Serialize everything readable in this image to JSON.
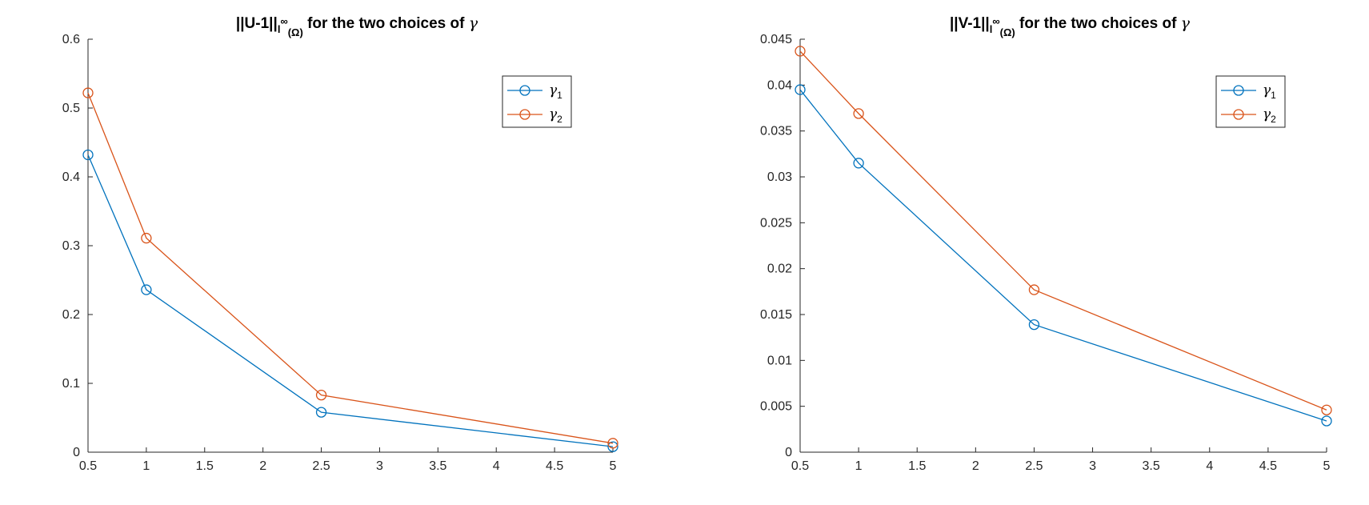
{
  "chart_data": [
    {
      "type": "line",
      "title": {
        "main": "||U-1||",
        "sub": "l",
        "sup": "∞",
        "sub2": "(Ω)",
        "rest": " for the two choices of ",
        "symbol": "γ"
      },
      "xlabel": "",
      "ylabel": "",
      "x": [
        0.5,
        1,
        2.5,
        5
      ],
      "xlim": [
        0.5,
        5
      ],
      "ylim": [
        0,
        0.6
      ],
      "xticks": [
        0.5,
        1,
        1.5,
        2,
        2.5,
        3,
        3.5,
        4,
        4.5,
        5
      ],
      "xtick_labels": [
        "0.5",
        "1",
        "1.5",
        "2",
        "2.5",
        "3",
        "3.5",
        "4",
        "4.5",
        "5"
      ],
      "yticks": [
        0,
        0.1,
        0.2,
        0.3,
        0.4,
        0.5,
        0.6
      ],
      "ytick_labels": [
        "0",
        "0.1",
        "0.2",
        "0.3",
        "0.4",
        "0.5",
        "0.6"
      ],
      "grid": false,
      "legend_position": "top-right",
      "series": [
        {
          "name": "γ1",
          "label": "γ",
          "sub": "1",
          "color": "#0072BD",
          "values": [
            0.432,
            0.236,
            0.058,
            0.008
          ]
        },
        {
          "name": "γ2",
          "label": "γ",
          "sub": "2",
          "color": "#D95319",
          "values": [
            0.522,
            0.311,
            0.083,
            0.013
          ]
        }
      ]
    },
    {
      "type": "line",
      "title": {
        "main": "||V-1||",
        "sub": "l",
        "sup": "∞",
        "sub2": "(Ω)",
        "rest": " for the two choices of ",
        "symbol": "γ"
      },
      "xlabel": "",
      "ylabel": "",
      "x": [
        0.5,
        1,
        2.5,
        5
      ],
      "xlim": [
        0.5,
        5
      ],
      "ylim": [
        0,
        0.045
      ],
      "xticks": [
        0.5,
        1,
        1.5,
        2,
        2.5,
        3,
        3.5,
        4,
        4.5,
        5
      ],
      "xtick_labels": [
        "0.5",
        "1",
        "1.5",
        "2",
        "2.5",
        "3",
        "3.5",
        "4",
        "4.5",
        "5"
      ],
      "yticks": [
        0,
        0.005,
        0.01,
        0.015,
        0.02,
        0.025,
        0.03,
        0.035,
        0.04,
        0.045
      ],
      "ytick_labels": [
        "0",
        "0.005",
        "0.01",
        "0.015",
        "0.02",
        "0.025",
        "0.03",
        "0.035",
        "0.04",
        "0.045"
      ],
      "grid": false,
      "legend_position": "top-right",
      "series": [
        {
          "name": "γ1",
          "label": "γ",
          "sub": "1",
          "color": "#0072BD",
          "values": [
            0.0395,
            0.0315,
            0.0139,
            0.0034
          ]
        },
        {
          "name": "γ2",
          "label": "γ",
          "sub": "2",
          "color": "#D95319",
          "values": [
            0.0437,
            0.0369,
            0.0177,
            0.0046
          ]
        }
      ]
    }
  ]
}
